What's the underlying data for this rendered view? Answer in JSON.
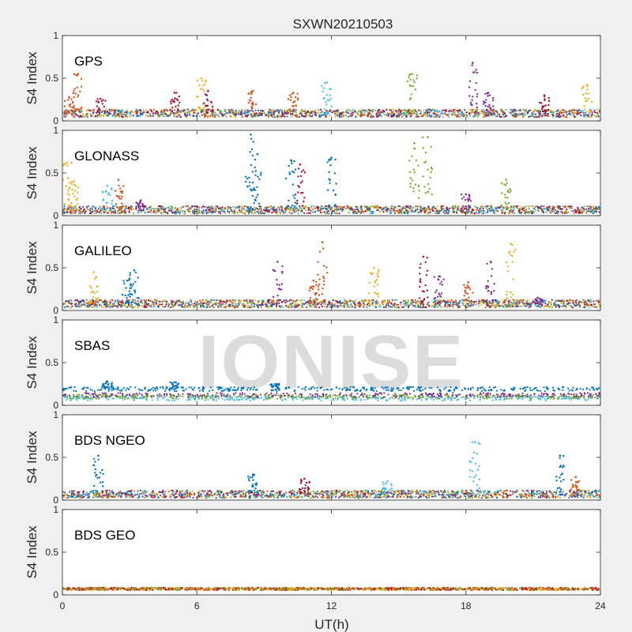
{
  "chart_data": {
    "type": "scatter",
    "title": "SXWN20210503",
    "xlabel": "UT(h)",
    "ylabel": "S4 Index",
    "xlim": [
      0,
      24
    ],
    "ylim": [
      0,
      1
    ],
    "xticks": [
      0,
      6,
      12,
      18,
      24
    ],
    "yticks": [
      0,
      0.5,
      1
    ],
    "watermark": "IONISE",
    "watermark_panel": "SBAS",
    "colors": [
      "#0072BD",
      "#D95319",
      "#EDB120",
      "#7E2F8E",
      "#77AC30",
      "#4DBEEE",
      "#A2142F"
    ],
    "panels": [
      {
        "label": "GPS",
        "baseline": 0.08,
        "spikes": [
          {
            "t": 0.7,
            "peak": 0.55,
            "color": "#D95319"
          },
          {
            "t": 0.3,
            "peak": 0.28,
            "color": "#D95319"
          },
          {
            "t": 1.7,
            "peak": 0.26,
            "color": "#A2142F"
          },
          {
            "t": 5.0,
            "peak": 0.33,
            "color": "#A2142F"
          },
          {
            "t": 6.2,
            "peak": 0.5,
            "color": "#EDB120"
          },
          {
            "t": 6.5,
            "peak": 0.35,
            "color": "#A2142F"
          },
          {
            "t": 8.5,
            "peak": 0.35,
            "color": "#D95319"
          },
          {
            "t": 10.3,
            "peak": 0.33,
            "color": "#D95319"
          },
          {
            "t": 11.8,
            "peak": 0.45,
            "color": "#4DBEEE"
          },
          {
            "t": 15.6,
            "peak": 0.55,
            "color": "#77AC30"
          },
          {
            "t": 18.3,
            "peak": 0.68,
            "color": "#7E2F8E"
          },
          {
            "t": 19.0,
            "peak": 0.33,
            "color": "#7E2F8E"
          },
          {
            "t": 21.5,
            "peak": 0.3,
            "color": "#A2142F"
          },
          {
            "t": 23.4,
            "peak": 0.42,
            "color": "#EDB120"
          }
        ]
      },
      {
        "label": "GLONASS",
        "baseline": 0.06,
        "spikes": [
          {
            "t": 0.2,
            "peak": 0.62,
            "color": "#EDB120"
          },
          {
            "t": 0.5,
            "peak": 0.4,
            "color": "#EDB120"
          },
          {
            "t": 2.0,
            "peak": 0.35,
            "color": "#4DBEEE"
          },
          {
            "t": 2.5,
            "peak": 0.42,
            "color": "#D95319"
          },
          {
            "t": 3.5,
            "peak": 0.18,
            "color": "#7E2F8E"
          },
          {
            "t": 8.4,
            "peak": 0.95,
            "color": "#0072BD"
          },
          {
            "t": 8.7,
            "peak": 0.72,
            "color": "#0072BD"
          },
          {
            "t": 10.2,
            "peak": 0.65,
            "color": "#0072BD"
          },
          {
            "t": 10.6,
            "peak": 0.6,
            "color": "#A2142F"
          },
          {
            "t": 12.0,
            "peak": 0.68,
            "color": "#0072BD"
          },
          {
            "t": 15.7,
            "peak": 0.85,
            "color": "#77AC30"
          },
          {
            "t": 16.3,
            "peak": 0.92,
            "color": "#77AC30"
          },
          {
            "t": 19.8,
            "peak": 0.42,
            "color": "#77AC30"
          },
          {
            "t": 18.0,
            "peak": 0.25,
            "color": "#7E2F8E"
          }
        ]
      },
      {
        "label": "GALILEO",
        "baseline": 0.07,
        "spikes": [
          {
            "t": 1.4,
            "peak": 0.45,
            "color": "#EDB120"
          },
          {
            "t": 2.9,
            "peak": 0.35,
            "color": "#0072BD"
          },
          {
            "t": 3.2,
            "peak": 0.47,
            "color": "#0072BD"
          },
          {
            "t": 9.6,
            "peak": 0.57,
            "color": "#7E2F8E"
          },
          {
            "t": 11.6,
            "peak": 0.8,
            "color": "#D95319"
          },
          {
            "t": 11.2,
            "peak": 0.35,
            "color": "#D95319"
          },
          {
            "t": 13.9,
            "peak": 0.5,
            "color": "#EDB120"
          },
          {
            "t": 16.1,
            "peak": 0.63,
            "color": "#A2142F"
          },
          {
            "t": 16.8,
            "peak": 0.4,
            "color": "#7E2F8E"
          },
          {
            "t": 18.1,
            "peak": 0.33,
            "color": "#D95319"
          },
          {
            "t": 19.1,
            "peak": 0.57,
            "color": "#7E2F8E"
          },
          {
            "t": 20.0,
            "peak": 0.78,
            "color": "#EDB120"
          },
          {
            "t": 21.2,
            "peak": 0.15,
            "color": "#7E2F8E"
          }
        ]
      },
      {
        "label": "SBAS",
        "baseline": 0.19,
        "spikes": [
          {
            "t": 2.0,
            "peak": 0.28,
            "color": "#0072BD"
          },
          {
            "t": 5.0,
            "peak": 0.27,
            "color": "#0072BD"
          },
          {
            "t": 9.5,
            "peak": 0.25,
            "color": "#0072BD"
          }
        ]
      },
      {
        "label": "BDS NGEO",
        "baseline": 0.06,
        "spikes": [
          {
            "t": 1.6,
            "peak": 0.52,
            "color": "#0072BD"
          },
          {
            "t": 8.5,
            "peak": 0.3,
            "color": "#0072BD"
          },
          {
            "t": 10.8,
            "peak": 0.25,
            "color": "#A2142F"
          },
          {
            "t": 14.5,
            "peak": 0.22,
            "color": "#4DBEEE"
          },
          {
            "t": 18.4,
            "peak": 0.68,
            "color": "#4DBEEE"
          },
          {
            "t": 22.2,
            "peak": 0.52,
            "color": "#0072BD"
          },
          {
            "t": 22.9,
            "peak": 0.27,
            "color": "#D95319"
          }
        ]
      },
      {
        "label": "BDS GEO",
        "baseline": 0.08,
        "spikes": []
      }
    ]
  }
}
